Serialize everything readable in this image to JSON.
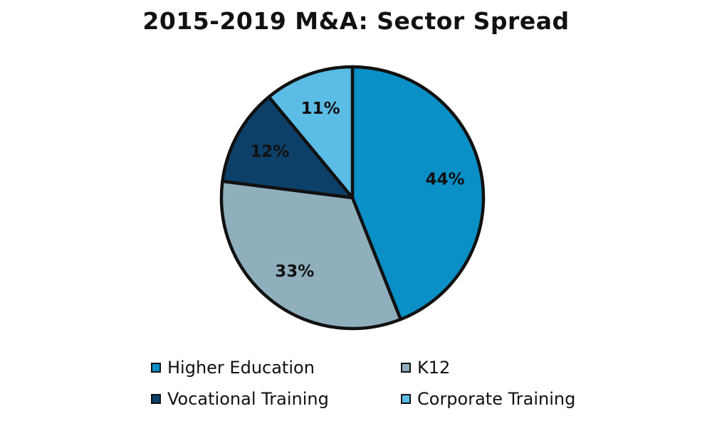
{
  "chart_data": {
    "type": "pie",
    "title": "2015-2019 M&A: Sector Spread",
    "categories": [
      "Higher Education",
      "K12",
      "Vocational Training",
      "Corporate Training"
    ],
    "values": [
      44,
      33,
      12,
      11
    ],
    "labels": [
      "44%",
      "33%",
      "12%",
      "11%"
    ],
    "colors": [
      "#0a8fc6",
      "#8fafbd",
      "#0d4069",
      "#5bbce6"
    ],
    "legend_position": "bottom"
  }
}
